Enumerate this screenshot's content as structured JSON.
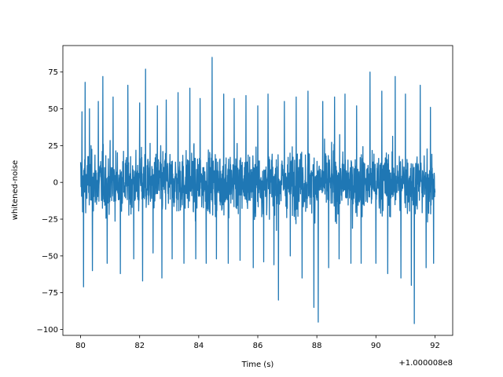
{
  "chart_data": {
    "type": "line",
    "title": "",
    "xlabel": "Time (s)",
    "ylabel": "whitened-noise",
    "x_offset_label": "+1.000008e8",
    "xlim": [
      79.4,
      92.6
    ],
    "ylim": [
      -104,
      93
    ],
    "x_range": [
      80,
      92
    ],
    "xticks": [
      80,
      82,
      84,
      86,
      88,
      90,
      92
    ],
    "yticks": [
      -100,
      -75,
      -50,
      -25,
      0,
      25,
      50,
      75
    ],
    "grid": false,
    "legend": "none",
    "color": "#1f77b4",
    "series": [
      {
        "spikes": [
          {
            "x": 80.05,
            "y": 48
          },
          {
            "x": 80.1,
            "y": -71
          },
          {
            "x": 80.15,
            "y": 68
          },
          {
            "x": 80.3,
            "y": 50
          },
          {
            "x": 80.4,
            "y": -60
          },
          {
            "x": 80.6,
            "y": 55
          },
          {
            "x": 80.75,
            "y": 72
          },
          {
            "x": 80.9,
            "y": -55
          },
          {
            "x": 81.1,
            "y": 58
          },
          {
            "x": 81.35,
            "y": -62
          },
          {
            "x": 81.6,
            "y": 66
          },
          {
            "x": 81.8,
            "y": -52
          },
          {
            "x": 82.0,
            "y": 54
          },
          {
            "x": 82.1,
            "y": -67
          },
          {
            "x": 82.2,
            "y": 77
          },
          {
            "x": 82.45,
            "y": -48
          },
          {
            "x": 82.6,
            "y": 52
          },
          {
            "x": 82.75,
            "y": -65
          },
          {
            "x": 82.9,
            "y": 56
          },
          {
            "x": 83.1,
            "y": -52
          },
          {
            "x": 83.3,
            "y": 61
          },
          {
            "x": 83.5,
            "y": -55
          },
          {
            "x": 83.7,
            "y": 64
          },
          {
            "x": 83.9,
            "y": -52
          },
          {
            "x": 84.05,
            "y": 57
          },
          {
            "x": 84.25,
            "y": -55
          },
          {
            "x": 84.45,
            "y": 85
          },
          {
            "x": 84.6,
            "y": -52
          },
          {
            "x": 84.85,
            "y": 60
          },
          {
            "x": 85.0,
            "y": -55
          },
          {
            "x": 85.2,
            "y": 57
          },
          {
            "x": 85.4,
            "y": -53
          },
          {
            "x": 85.6,
            "y": 59
          },
          {
            "x": 85.85,
            "y": -58
          },
          {
            "x": 86.0,
            "y": 52
          },
          {
            "x": 86.2,
            "y": -54
          },
          {
            "x": 86.35,
            "y": 60
          },
          {
            "x": 86.55,
            "y": -56
          },
          {
            "x": 86.7,
            "y": -80
          },
          {
            "x": 86.9,
            "y": 55
          },
          {
            "x": 87.1,
            "y": -50
          },
          {
            "x": 87.3,
            "y": 58
          },
          {
            "x": 87.5,
            "y": -65
          },
          {
            "x": 87.7,
            "y": 62
          },
          {
            "x": 87.9,
            "y": -85
          },
          {
            "x": 88.05,
            "y": -95
          },
          {
            "x": 88.2,
            "y": 55
          },
          {
            "x": 88.4,
            "y": -58
          },
          {
            "x": 88.6,
            "y": 58
          },
          {
            "x": 88.75,
            "y": -52
          },
          {
            "x": 88.95,
            "y": 60
          },
          {
            "x": 89.15,
            "y": -55
          },
          {
            "x": 89.35,
            "y": 52
          },
          {
            "x": 89.5,
            "y": -55
          },
          {
            "x": 89.8,
            "y": 75
          },
          {
            "x": 90.0,
            "y": -55
          },
          {
            "x": 90.2,
            "y": 62
          },
          {
            "x": 90.4,
            "y": -62
          },
          {
            "x": 90.65,
            "y": 72
          },
          {
            "x": 90.85,
            "y": -65
          },
          {
            "x": 91.0,
            "y": 60
          },
          {
            "x": 91.2,
            "y": -70
          },
          {
            "x": 91.3,
            "y": -96
          },
          {
            "x": 91.5,
            "y": 66
          },
          {
            "x": 91.7,
            "y": -58
          },
          {
            "x": 91.85,
            "y": 51
          },
          {
            "x": 91.95,
            "y": -55
          }
        ],
        "typical_amplitude": 38,
        "sample_count": 1800
      }
    ]
  }
}
